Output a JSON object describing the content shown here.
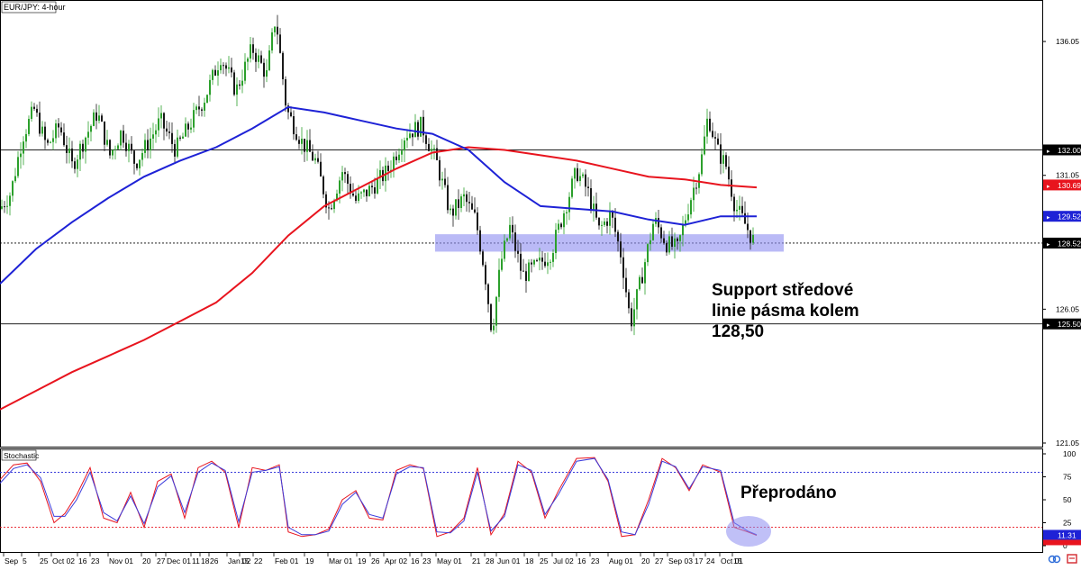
{
  "chart_data": [
    {
      "type": "candlestick",
      "title": "EUR/JPY: 4-hour",
      "y_ticks": [
        "136.05",
        "131.05",
        "126.05",
        "121.05"
      ],
      "x_ticks": [
        "Sep",
        "5",
        "25",
        "Oct 02",
        "16",
        "23",
        "Nov 01",
        "20",
        "27",
        "Dec 01",
        "11",
        "18",
        "26",
        "Jan 02",
        "15",
        "22",
        "Feb 01",
        "19",
        "Mar 01",
        "19",
        "26",
        "Apr 02",
        "16",
        "23",
        "May 01",
        "21",
        "28",
        "Jun 01",
        "18",
        "25",
        "Jul 02",
        "16",
        "23",
        "Aug 01",
        "20",
        "27",
        "Sep 03",
        "17",
        "24",
        "Oct 01",
        "15"
      ],
      "ylim": [
        121.05,
        137.6
      ],
      "price_labels": [
        {
          "text": "132.00",
          "value": 132.0,
          "color": "#000000"
        },
        {
          "text": "130.69",
          "value": 130.69,
          "color": "#e8141e"
        },
        {
          "text": "129.52",
          "value": 129.52,
          "color": "#1e22d6"
        },
        {
          "text": "128.52",
          "value": 128.52,
          "color": "#000000"
        },
        {
          "text": "125.50",
          "value": 125.5,
          "color": "#000000"
        }
      ],
      "levels": [
        {
          "value": 132.0,
          "style": "solid"
        },
        {
          "value": 128.52,
          "style": "dotted"
        },
        {
          "value": 125.5,
          "style": "solid"
        }
      ],
      "support_zone": {
        "low": 128.2,
        "high": 128.85
      },
      "ma_red": {
        "x": [
          0,
          40,
          80,
          120,
          160,
          200,
          240,
          280,
          320,
          360,
          400,
          440,
          480,
          520,
          560,
          600,
          640,
          680,
          720,
          760,
          800,
          840
        ],
        "y": [
          122.3,
          123.0,
          123.7,
          124.3,
          124.9,
          125.6,
          126.3,
          127.4,
          128.8,
          129.9,
          130.6,
          131.3,
          131.9,
          132.1,
          132.0,
          131.8,
          131.6,
          131.3,
          131.0,
          130.9,
          130.69,
          130.6
        ]
      },
      "ma_blue": {
        "x": [
          0,
          40,
          80,
          120,
          160,
          200,
          240,
          280,
          320,
          360,
          400,
          440,
          480,
          520,
          560,
          600,
          640,
          680,
          720,
          760,
          800,
          840
        ],
        "y": [
          127.0,
          128.3,
          129.3,
          130.2,
          131.0,
          131.6,
          132.1,
          132.8,
          133.6,
          133.4,
          133.1,
          132.8,
          132.6,
          132.0,
          130.8,
          129.9,
          129.8,
          129.7,
          129.4,
          129.2,
          129.52,
          129.52
        ]
      },
      "ohlc_path": [
        [
          0,
          129.8
        ],
        [
          12,
          130.4
        ],
        [
          25,
          132.5
        ],
        [
          38,
          133.5
        ],
        [
          52,
          132.1
        ],
        [
          66,
          132.9
        ],
        [
          80,
          131.4
        ],
        [
          95,
          132.5
        ],
        [
          108,
          133.4
        ],
        [
          122,
          131.8
        ],
        [
          135,
          132.7
        ],
        [
          150,
          131.5
        ],
        [
          165,
          132.3
        ],
        [
          178,
          133.1
        ],
        [
          195,
          132.0
        ],
        [
          210,
          132.9
        ],
        [
          228,
          134.0
        ],
        [
          245,
          135.5
        ],
        [
          262,
          134.2
        ],
        [
          280,
          135.8
        ],
        [
          296,
          134.8
        ],
        [
          306,
          137.0
        ],
        [
          318,
          133.5
        ],
        [
          335,
          132.3
        ],
        [
          350,
          131.6
        ],
        [
          365,
          129.8
        ],
        [
          380,
          131.2
        ],
        [
          395,
          130.1
        ],
        [
          410,
          130.5
        ],
        [
          430,
          131.2
        ],
        [
          450,
          132.6
        ],
        [
          468,
          132.9
        ],
        [
          485,
          131.5
        ],
        [
          500,
          129.6
        ],
        [
          515,
          130.2
        ],
        [
          528,
          129.4
        ],
        [
          538,
          127.5
        ],
        [
          546,
          125.2
        ],
        [
          556,
          127.8
        ],
        [
          566,
          129.1
        ],
        [
          580,
          127.3
        ],
        [
          598,
          127.7
        ],
        [
          612,
          128.2
        ],
        [
          626,
          129.7
        ],
        [
          640,
          131.2
        ],
        [
          652,
          130.5
        ],
        [
          665,
          129.0
        ],
        [
          678,
          129.6
        ],
        [
          690,
          128.0
        ],
        [
          700,
          125.5
        ],
        [
          712,
          127.2
        ],
        [
          726,
          129.4
        ],
        [
          740,
          128.5
        ],
        [
          752,
          128.3
        ],
        [
          765,
          130.0
        ],
        [
          778,
          131.5
        ],
        [
          786,
          133.3
        ],
        [
          796,
          132.0
        ],
        [
          806,
          131.4
        ],
        [
          816,
          129.9
        ],
        [
          826,
          129.3
        ],
        [
          838,
          128.5
        ]
      ],
      "annotation": "Support středové linie pásma kolem 128,50"
    },
    {
      "type": "line",
      "title": "Stochastic",
      "y_ticks": [
        "100",
        "75",
        "50",
        "25",
        "0"
      ],
      "ylim": [
        0,
        100
      ],
      "levels": [
        {
          "value": 80,
          "color": "#1e22d6"
        },
        {
          "value": 20,
          "color": "#e8141e"
        }
      ],
      "current_label": {
        "text": "11.31",
        "value": 11.31
      },
      "series": [
        {
          "color": "#e8141e",
          "x": [
            0,
            15,
            30,
            45,
            60,
            72,
            85,
            100,
            115,
            130,
            145,
            160,
            175,
            190,
            205,
            220,
            235,
            250,
            265,
            280,
            295,
            310,
            320,
            335,
            350,
            365,
            380,
            395,
            410,
            425,
            440,
            455,
            470,
            485,
            500,
            515,
            530,
            545,
            560,
            575,
            590,
            605,
            620,
            640,
            660,
            675,
            690,
            705,
            720,
            735,
            750,
            765,
            780,
            800,
            815,
            830,
            840
          ],
          "y": [
            72,
            88,
            90,
            70,
            25,
            35,
            55,
            85,
            30,
            25,
            58,
            20,
            70,
            78,
            30,
            85,
            92,
            80,
            20,
            85,
            82,
            88,
            15,
            10,
            12,
            18,
            50,
            60,
            30,
            28,
            82,
            88,
            84,
            10,
            15,
            30,
            85,
            12,
            35,
            92,
            80,
            30,
            60,
            95,
            96,
            70,
            10,
            12,
            50,
            95,
            85,
            60,
            88,
            80,
            20,
            15,
            11.31
          ]
        },
        {
          "color": "#3c3cdc",
          "x": [
            0,
            15,
            30,
            45,
            60,
            72,
            85,
            100,
            115,
            130,
            145,
            160,
            175,
            190,
            205,
            220,
            235,
            250,
            265,
            280,
            295,
            310,
            320,
            335,
            350,
            365,
            380,
            395,
            410,
            425,
            440,
            455,
            470,
            485,
            500,
            515,
            530,
            545,
            560,
            575,
            590,
            605,
            620,
            640,
            660,
            675,
            690,
            705,
            720,
            735,
            750,
            765,
            780,
            800,
            815,
            830,
            840
          ],
          "y": [
            68,
            84,
            88,
            74,
            32,
            32,
            50,
            80,
            36,
            27,
            54,
            24,
            64,
            76,
            36,
            80,
            90,
            82,
            26,
            80,
            82,
            86,
            20,
            12,
            12,
            16,
            45,
            58,
            34,
            30,
            78,
            86,
            85,
            15,
            14,
            27,
            80,
            16,
            32,
            88,
            82,
            34,
            56,
            92,
            95,
            72,
            15,
            12,
            45,
            92,
            86,
            62,
            86,
            82,
            25,
            16,
            12
          ]
        }
      ],
      "annotation": "Přeprodáno"
    }
  ],
  "colors": {
    "bull": "#2ca02c",
    "bear": "#1a1a1a",
    "ma_red": "#e8141e",
    "ma_blue": "#1e22d6",
    "zone": "#8c8cf0",
    "ellipse": "#8c8cf0"
  }
}
